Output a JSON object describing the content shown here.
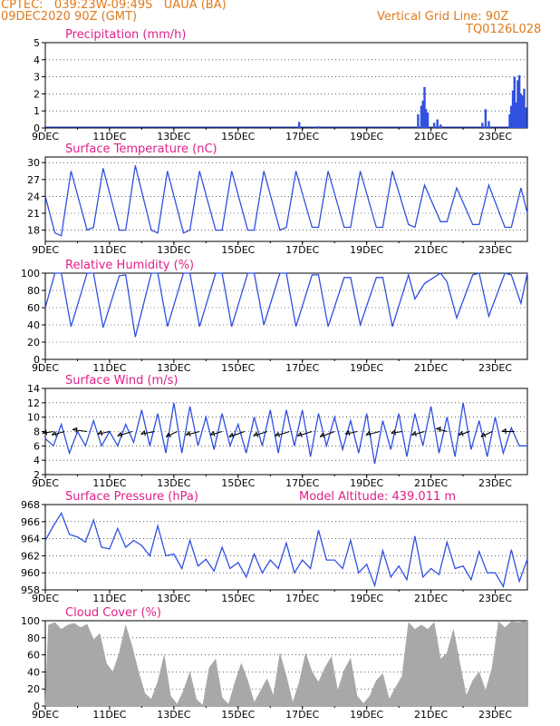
{
  "header": {
    "line1": "CPTEC:   039:23W-09:49S   UAUA (BA)",
    "line2": "09DEC2020 90Z (GMT)",
    "vgrid": "Vertical Grid Line: 90Z",
    "code": "TQ0126L028"
  },
  "colors": {
    "header": "#e07a1a",
    "title": "#e0208a",
    "line": "#3050e0",
    "bar": "#3050e0",
    "cloud": "#a8a8a8",
    "wind": "#000000"
  },
  "xaxis": {
    "ticks": [
      "9DEC",
      "11DEC",
      "13DEC",
      "15DEC",
      "17DEC",
      "19DEC",
      "21DEC",
      "23DEC"
    ],
    "tick_days": [
      9,
      11,
      13,
      15,
      17,
      19,
      21,
      23
    ],
    "range_days": [
      9,
      24
    ]
  },
  "chart_data": [
    {
      "type": "bar",
      "title": "Precipitation (mm/h)",
      "ylim": [
        0,
        5
      ],
      "yticks": [
        0,
        1,
        2,
        3,
        4,
        5
      ],
      "pattern": "sparse",
      "events": [
        {
          "x": 16.9,
          "y": 0.35
        },
        {
          "x": 17.5,
          "y": 0.1
        },
        {
          "x": 20.6,
          "y": 0.8
        },
        {
          "x": 20.7,
          "y": 1.3
        },
        {
          "x": 20.75,
          "y": 1.6
        },
        {
          "x": 20.8,
          "y": 2.4
        },
        {
          "x": 20.85,
          "y": 1.1
        },
        {
          "x": 20.9,
          "y": 0.9
        },
        {
          "x": 21.1,
          "y": 0.3
        },
        {
          "x": 21.2,
          "y": 0.5
        },
        {
          "x": 21.3,
          "y": 0.2
        },
        {
          "x": 22.6,
          "y": 0.3
        },
        {
          "x": 22.7,
          "y": 1.1
        },
        {
          "x": 22.8,
          "y": 0.4
        },
        {
          "x": 23.45,
          "y": 0.8
        },
        {
          "x": 23.5,
          "y": 1.3
        },
        {
          "x": 23.55,
          "y": 2.2
        },
        {
          "x": 23.6,
          "y": 3.0
        },
        {
          "x": 23.65,
          "y": 1.5
        },
        {
          "x": 23.7,
          "y": 2.8
        },
        {
          "x": 23.75,
          "y": 3.1
        },
        {
          "x": 23.8,
          "y": 2.0
        },
        {
          "x": 23.85,
          "y": 1.9
        },
        {
          "x": 23.9,
          "y": 2.3
        },
        {
          "x": 23.95,
          "y": 1.2
        }
      ]
    },
    {
      "type": "line",
      "title": "Surface Temperature (nC)",
      "ylim": [
        16,
        31
      ],
      "yticks": [
        18,
        21,
        24,
        27,
        30
      ],
      "x": [
        9.0,
        9.3,
        9.5,
        9.8,
        10.3,
        10.5,
        10.8,
        11.3,
        11.5,
        11.8,
        12.3,
        12.5,
        12.8,
        13.3,
        13.5,
        13.8,
        14.3,
        14.5,
        14.8,
        15.3,
        15.5,
        15.8,
        16.3,
        16.5,
        16.8,
        17.3,
        17.5,
        17.8,
        18.3,
        18.5,
        18.8,
        19.3,
        19.5,
        19.8,
        20.3,
        20.5,
        20.8,
        21.3,
        21.5,
        21.8,
        22.3,
        22.5,
        22.8,
        23.3,
        23.5,
        23.8,
        24.0
      ],
      "y": [
        24,
        17.5,
        17,
        28.5,
        18,
        18.5,
        29,
        18,
        18,
        29.5,
        18,
        17.5,
        28.5,
        17.5,
        18,
        28.5,
        18,
        18,
        28.5,
        18,
        18,
        28.5,
        18,
        18.5,
        28.5,
        18.5,
        18.5,
        28.5,
        18.5,
        18.5,
        28.5,
        18.5,
        18.5,
        28.5,
        19,
        18.5,
        26,
        19.5,
        19.5,
        25.5,
        19,
        19,
        26,
        18.5,
        18.5,
        25.5,
        21
      ]
    },
    {
      "type": "line",
      "title": "Relative Humidity (%)",
      "ylim": [
        0,
        100
      ],
      "yticks": [
        0,
        20,
        40,
        60,
        80,
        100
      ],
      "x": [
        9.0,
        9.3,
        9.5,
        9.8,
        10.3,
        10.5,
        10.8,
        11.3,
        11.5,
        11.8,
        12.3,
        12.5,
        12.8,
        13.3,
        13.5,
        13.8,
        14.3,
        14.5,
        14.8,
        15.3,
        15.5,
        15.8,
        16.3,
        16.5,
        16.8,
        17.3,
        17.5,
        17.8,
        18.3,
        18.5,
        18.8,
        19.3,
        19.5,
        19.8,
        20.3,
        20.5,
        20.8,
        21.3,
        21.5,
        21.8,
        22.3,
        22.5,
        22.8,
        23.3,
        23.5,
        23.8,
        24.0
      ],
      "y": [
        60,
        100,
        100,
        38,
        100,
        100,
        37,
        97,
        98,
        26,
        100,
        100,
        38,
        100,
        100,
        38,
        100,
        100,
        38,
        100,
        100,
        40,
        100,
        100,
        38,
        98,
        98,
        38,
        95,
        95,
        40,
        95,
        95,
        38,
        98,
        70,
        88,
        100,
        90,
        48,
        98,
        100,
        50,
        100,
        98,
        65,
        100
      ]
    },
    {
      "type": "line",
      "title": "Surface Wind (m/s)",
      "ylim": [
        2,
        14
      ],
      "yticks": [
        2,
        4,
        6,
        8,
        10,
        12,
        14
      ],
      "x": [
        9.0,
        9.25,
        9.5,
        9.75,
        10.0,
        10.25,
        10.5,
        10.75,
        11.0,
        11.25,
        11.5,
        11.75,
        12.0,
        12.25,
        12.5,
        12.75,
        13.0,
        13.25,
        13.5,
        13.75,
        14.0,
        14.25,
        14.5,
        14.75,
        15.0,
        15.25,
        15.5,
        15.75,
        16.0,
        16.25,
        16.5,
        16.75,
        17.0,
        17.25,
        17.5,
        17.75,
        18.0,
        18.25,
        18.5,
        18.75,
        19.0,
        19.25,
        19.5,
        19.75,
        20.0,
        20.25,
        20.5,
        20.75,
        21.0,
        21.25,
        21.5,
        21.75,
        22.0,
        22.25,
        22.5,
        22.75,
        23.0,
        23.25,
        23.5,
        23.75,
        24.0
      ],
      "y": [
        7,
        6,
        9,
        5,
        8,
        6,
        9.5,
        6,
        8,
        6,
        9,
        6.5,
        11,
        6,
        10.5,
        5,
        12,
        5,
        11.5,
        6,
        10,
        5.5,
        10.5,
        6,
        9,
        5,
        10,
        6,
        11,
        5,
        11,
        6,
        11,
        4.5,
        10.5,
        6,
        10,
        5.5,
        9.5,
        5,
        10.5,
        3.5,
        9.5,
        5.5,
        10.5,
        4.5,
        10.5,
        6,
        11.5,
        5,
        10,
        4.5,
        12,
        5.5,
        9.5,
        4.5,
        10,
        5,
        8.5,
        6,
        6
      ]
    },
    {
      "type": "line",
      "title": "Surface Pressure (hPa)",
      "annotation": "Model Altitude: 439.011 m",
      "ylim": [
        958,
        968
      ],
      "yticks": [
        958,
        960,
        962,
        964,
        966,
        968
      ],
      "x": [
        9.0,
        9.25,
        9.5,
        9.75,
        10.0,
        10.25,
        10.5,
        10.75,
        11.0,
        11.25,
        11.5,
        11.75,
        12.0,
        12.25,
        12.5,
        12.75,
        13.0,
        13.25,
        13.5,
        13.75,
        14.0,
        14.25,
        14.5,
        14.75,
        15.0,
        15.25,
        15.5,
        15.75,
        16.0,
        16.25,
        16.5,
        16.75,
        17.0,
        17.25,
        17.5,
        17.75,
        18.0,
        18.25,
        18.5,
        18.75,
        19.0,
        19.25,
        19.5,
        19.75,
        20.0,
        20.25,
        20.5,
        20.75,
        21.0,
        21.25,
        21.5,
        21.75,
        22.0,
        22.25,
        22.5,
        22.75,
        23.0,
        23.25,
        23.5,
        23.75,
        24.0
      ],
      "y": [
        963.8,
        965.5,
        967,
        964.5,
        964.2,
        963.6,
        966.2,
        963,
        962.8,
        965.2,
        963,
        963.8,
        963.2,
        962,
        965.5,
        962,
        962.2,
        960.5,
        963.8,
        960.8,
        961.6,
        960.2,
        963,
        960.5,
        961.2,
        959.5,
        962.2,
        960,
        961.5,
        960.5,
        963.5,
        960,
        961.5,
        960.5,
        965,
        961.5,
        961.5,
        960.5,
        963.8,
        960,
        961,
        958.5,
        962.6,
        959.5,
        960.8,
        959.2,
        964.3,
        959.5,
        960.5,
        959.8,
        963.6,
        960.5,
        960.8,
        959.2,
        962.5,
        960,
        960,
        958.4,
        962.7,
        959,
        961.6
      ]
    },
    {
      "type": "area",
      "title": "Cloud Cover (%)",
      "ylim": [
        0,
        100
      ],
      "yticks": [
        0,
        20,
        40,
        60,
        80,
        100
      ],
      "pattern": "dense",
      "x": [
        9.0,
        9.1,
        9.3,
        9.5,
        9.7,
        9.9,
        10.1,
        10.3,
        10.5,
        10.7,
        10.9,
        11.1,
        11.3,
        11.5,
        11.7,
        11.9,
        12.1,
        12.3,
        12.5,
        12.7,
        12.9,
        13.1,
        13.3,
        13.5,
        13.7,
        13.9,
        14.1,
        14.3,
        14.5,
        14.7,
        14.9,
        15.1,
        15.3,
        15.5,
        15.7,
        15.9,
        16.1,
        16.3,
        16.5,
        16.7,
        16.9,
        17.1,
        17.3,
        17.5,
        17.7,
        17.9,
        18.1,
        18.3,
        18.5,
        18.7,
        18.9,
        19.1,
        19.3,
        19.5,
        19.7,
        19.9,
        20.1,
        20.3,
        20.5,
        20.7,
        20.9,
        21.1,
        21.3,
        21.5,
        21.7,
        21.9,
        22.1,
        22.3,
        22.5,
        22.7,
        22.9,
        23.1,
        23.3,
        23.5,
        23.7,
        23.9,
        24.0
      ],
      "y": [
        5,
        95,
        98,
        90,
        95,
        97,
        92,
        96,
        78,
        85,
        50,
        40,
        62,
        95,
        70,
        40,
        15,
        8,
        28,
        60,
        12,
        2,
        18,
        40,
        8,
        1,
        45,
        55,
        10,
        2,
        28,
        50,
        30,
        4,
        18,
        32,
        12,
        62,
        35,
        4,
        28,
        62,
        40,
        28,
        45,
        58,
        18,
        42,
        56,
        12,
        3,
        12,
        30,
        38,
        8,
        22,
        35,
        98,
        90,
        95,
        90,
        98,
        55,
        62,
        90,
        50,
        12,
        30,
        40,
        18,
        45,
        99,
        92,
        99,
        98,
        99,
        100
      ]
    }
  ],
  "wind_vectors": [
    {
      "x": 9.25,
      "dx": -12,
      "dy": 2
    },
    {
      "x": 9.6,
      "dx": -14,
      "dy": 4
    },
    {
      "x": 10.3,
      "dx": -16,
      "dy": -2
    },
    {
      "x": 11.0,
      "dx": -13,
      "dy": 3
    },
    {
      "x": 11.7,
      "dx": -16,
      "dy": 5
    },
    {
      "x": 12.4,
      "dx": -15,
      "dy": 3
    },
    {
      "x": 13.1,
      "dx": -12,
      "dy": 6
    },
    {
      "x": 13.8,
      "dx": -15,
      "dy": 4
    },
    {
      "x": 14.5,
      "dx": -13,
      "dy": 4
    },
    {
      "x": 15.2,
      "dx": -17,
      "dy": 6
    },
    {
      "x": 15.9,
      "dx": -15,
      "dy": 5
    },
    {
      "x": 16.6,
      "dx": -16,
      "dy": 5
    },
    {
      "x": 17.3,
      "dx": -16,
      "dy": 5
    },
    {
      "x": 18.0,
      "dx": -16,
      "dy": 6
    },
    {
      "x": 18.7,
      "dx": -13,
      "dy": 3
    },
    {
      "x": 19.4,
      "dx": -15,
      "dy": 4
    },
    {
      "x": 20.1,
      "dx": -12,
      "dy": 2
    },
    {
      "x": 20.8,
      "dx": -14,
      "dy": 4
    },
    {
      "x": 21.5,
      "dx": -12,
      "dy": -3
    },
    {
      "x": 22.2,
      "dx": -12,
      "dy": 4
    },
    {
      "x": 22.9,
      "dx": -12,
      "dy": 6
    },
    {
      "x": 23.6,
      "dx": -14,
      "dy": 0
    }
  ]
}
